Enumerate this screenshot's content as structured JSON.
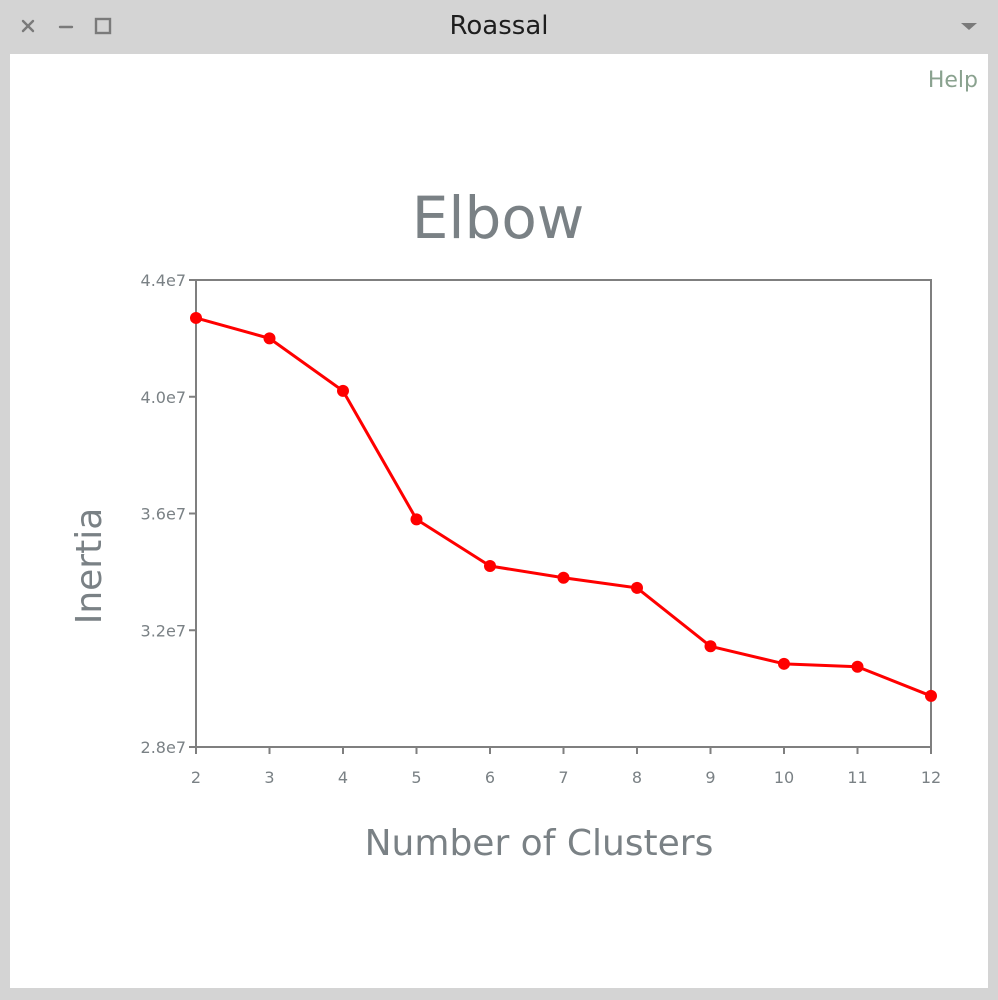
{
  "window": {
    "title": "Roassal",
    "close_icon": "close-icon",
    "minimize_icon": "minimize-icon",
    "maximize_icon": "maximize-icon",
    "menu_icon": "chevron-down-icon"
  },
  "help_label": "Help",
  "colors": {
    "series": "#ff0000",
    "axis": "#7f7f7f",
    "text": "#7a8185",
    "help": "#8aa28f"
  },
  "chart_data": {
    "type": "line",
    "title": "Elbow",
    "xlabel": "Number of Clusters",
    "ylabel": "Inertia",
    "x": [
      2,
      3,
      4,
      5,
      6,
      7,
      8,
      9,
      10,
      11,
      12
    ],
    "y": [
      42700000,
      42000000,
      40200000,
      35800000,
      34200000,
      33800000,
      33450000,
      31450000,
      30850000,
      30750000,
      29750000
    ],
    "xlim": [
      2,
      12
    ],
    "ylim": [
      28000000,
      44000000
    ],
    "xticks": [
      "2",
      "3",
      "4",
      "5",
      "6",
      "7",
      "8",
      "9",
      "10",
      "11",
      "12"
    ],
    "yticks": [
      {
        "value": 28000000,
        "label": "2.8e7"
      },
      {
        "value": 32000000,
        "label": "3.2e7"
      },
      {
        "value": 36000000,
        "label": "3.6e7"
      },
      {
        "value": 40000000,
        "label": "4.0e7"
      },
      {
        "value": 44000000,
        "label": "4.4e7"
      }
    ],
    "grid": false,
    "legend": "none"
  }
}
